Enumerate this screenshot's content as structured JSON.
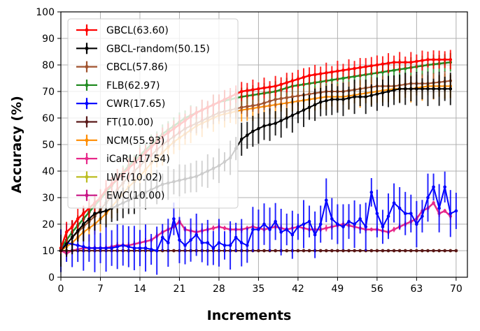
{
  "chart_data": {
    "type": "line",
    "title": "",
    "xlabel": "Increments",
    "ylabel": "Accuracy (%)",
    "xlim": [
      0,
      72
    ],
    "ylim": [
      0,
      100
    ],
    "xticks": [
      0,
      7,
      14,
      21,
      28,
      35,
      42,
      49,
      56,
      63,
      70
    ],
    "yticks": [
      0,
      10,
      20,
      30,
      40,
      50,
      60,
      70,
      80,
      90,
      100
    ],
    "grid": true,
    "legend_position": "top-left",
    "series": [
      {
        "name": "GBCL(63.60)",
        "color": "#ff0000",
        "linewidth": 2.5,
        "points": [
          [
            0,
            11
          ],
          [
            1,
            17
          ],
          [
            2,
            19
          ],
          [
            3,
            22
          ],
          [
            4,
            24
          ],
          [
            5,
            26
          ],
          [
            6,
            28
          ],
          [
            7,
            30
          ],
          [
            8,
            33
          ],
          [
            10,
            37
          ],
          [
            12,
            41
          ],
          [
            14,
            45
          ],
          [
            16,
            49
          ],
          [
            18,
            53
          ],
          [
            20,
            56
          ],
          [
            22,
            59
          ],
          [
            24,
            62
          ],
          [
            26,
            64
          ],
          [
            28,
            66
          ],
          [
            30,
            68
          ],
          [
            32,
            70
          ],
          [
            35,
            71
          ],
          [
            38,
            72
          ],
          [
            41,
            74
          ],
          [
            44,
            76
          ],
          [
            47,
            77
          ],
          [
            50,
            78
          ],
          [
            53,
            79
          ],
          [
            56,
            80
          ],
          [
            59,
            81
          ],
          [
            62,
            81
          ],
          [
            65,
            82
          ],
          [
            69,
            82
          ]
        ],
        "err": 3
      },
      {
        "name": "GBCL-random(50.15)",
        "color": "#000000",
        "linewidth": 2,
        "points": [
          [
            0,
            10
          ],
          [
            2,
            15
          ],
          [
            4,
            20
          ],
          [
            6,
            24
          ],
          [
            8,
            25
          ],
          [
            10,
            27
          ],
          [
            12,
            29
          ],
          [
            14,
            31
          ],
          [
            16,
            33
          ],
          [
            18,
            35
          ],
          [
            20,
            36
          ],
          [
            22,
            37
          ],
          [
            24,
            38
          ],
          [
            26,
            40
          ],
          [
            28,
            42
          ],
          [
            30,
            45
          ],
          [
            32,
            52
          ],
          [
            34,
            55
          ],
          [
            36,
            57
          ],
          [
            38,
            58
          ],
          [
            40,
            60
          ],
          [
            42,
            62
          ],
          [
            44,
            64
          ],
          [
            46,
            66
          ],
          [
            48,
            67
          ],
          [
            50,
            67
          ],
          [
            52,
            68
          ],
          [
            54,
            68
          ],
          [
            56,
            69
          ],
          [
            58,
            70
          ],
          [
            60,
            71
          ],
          [
            62,
            71
          ],
          [
            64,
            71
          ],
          [
            66,
            71
          ],
          [
            69,
            71
          ]
        ],
        "err": 5
      },
      {
        "name": "CBCL(57.86)",
        "color": "#a0522d",
        "linewidth": 2,
        "points": [
          [
            0,
            10
          ],
          [
            2,
            15
          ],
          [
            4,
            19
          ],
          [
            6,
            23
          ],
          [
            8,
            28
          ],
          [
            10,
            33
          ],
          [
            12,
            38
          ],
          [
            14,
            42
          ],
          [
            16,
            46
          ],
          [
            18,
            50
          ],
          [
            20,
            53
          ],
          [
            22,
            56
          ],
          [
            24,
            58
          ],
          [
            26,
            60
          ],
          [
            28,
            62
          ],
          [
            30,
            63
          ],
          [
            32,
            64
          ],
          [
            35,
            65
          ],
          [
            38,
            67
          ],
          [
            41,
            68
          ],
          [
            44,
            69
          ],
          [
            47,
            70
          ],
          [
            50,
            70
          ],
          [
            53,
            71
          ],
          [
            56,
            72
          ],
          [
            59,
            72
          ],
          [
            62,
            73
          ],
          [
            65,
            73
          ],
          [
            69,
            74
          ]
        ],
        "err": 3
      },
      {
        "name": "FLB(62.97)",
        "color": "#228b22",
        "linewidth": 2.5,
        "points": [
          [
            0,
            11
          ],
          [
            2,
            17
          ],
          [
            4,
            22
          ],
          [
            6,
            27
          ],
          [
            8,
            32
          ],
          [
            10,
            37
          ],
          [
            12,
            42
          ],
          [
            14,
            46
          ],
          [
            16,
            50
          ],
          [
            18,
            54
          ],
          [
            20,
            57
          ],
          [
            22,
            60
          ],
          [
            24,
            62
          ],
          [
            26,
            64
          ],
          [
            28,
            66
          ],
          [
            30,
            67
          ],
          [
            32,
            68
          ],
          [
            35,
            69
          ],
          [
            38,
            70
          ],
          [
            41,
            72
          ],
          [
            44,
            73
          ],
          [
            47,
            74
          ],
          [
            50,
            75
          ],
          [
            53,
            76
          ],
          [
            56,
            77
          ],
          [
            59,
            78
          ],
          [
            62,
            79
          ],
          [
            65,
            80
          ],
          [
            69,
            81
          ]
        ],
        "err": 3
      },
      {
        "name": "CWR(17.65)",
        "color": "#0000ff",
        "linewidth": 2,
        "points": [
          [
            0,
            10
          ],
          [
            1,
            13
          ],
          [
            3,
            12
          ],
          [
            5,
            11
          ],
          [
            7,
            11
          ],
          [
            9,
            11
          ],
          [
            11,
            12
          ],
          [
            13,
            11
          ],
          [
            15,
            11
          ],
          [
            17,
            10
          ],
          [
            18,
            15
          ],
          [
            19,
            13
          ],
          [
            20,
            22
          ],
          [
            21,
            14
          ],
          [
            22,
            12
          ],
          [
            23,
            14
          ],
          [
            24,
            16
          ],
          [
            25,
            13
          ],
          [
            26,
            13
          ],
          [
            27,
            11
          ],
          [
            28,
            13
          ],
          [
            29,
            12
          ],
          [
            30,
            12
          ],
          [
            31,
            15
          ],
          [
            32,
            13
          ],
          [
            33,
            12
          ],
          [
            34,
            18
          ],
          [
            35,
            18
          ],
          [
            36,
            20
          ],
          [
            37,
            18
          ],
          [
            38,
            21
          ],
          [
            39,
            17
          ],
          [
            40,
            18
          ],
          [
            41,
            16
          ],
          [
            42,
            19
          ],
          [
            43,
            20
          ],
          [
            44,
            21
          ],
          [
            45,
            16
          ],
          [
            46,
            20
          ],
          [
            47,
            29
          ],
          [
            48,
            22
          ],
          [
            49,
            20
          ],
          [
            50,
            19
          ],
          [
            51,
            21
          ],
          [
            52,
            20
          ],
          [
            53,
            22
          ],
          [
            54,
            19
          ],
          [
            55,
            32
          ],
          [
            56,
            24
          ],
          [
            57,
            19
          ],
          [
            58,
            23
          ],
          [
            59,
            28
          ],
          [
            60,
            26
          ],
          [
            61,
            24
          ],
          [
            62,
            24
          ],
          [
            63,
            20
          ],
          [
            64,
            23
          ],
          [
            65,
            30
          ],
          [
            66,
            34
          ],
          [
            67,
            26
          ],
          [
            68,
            34
          ],
          [
            69,
            24
          ],
          [
            70,
            25
          ]
        ],
        "err": 7
      },
      {
        "name": "FT(10.00)",
        "color": "#5a1a1a",
        "linewidth": 2,
        "points": [
          [
            0,
            10
          ],
          [
            70,
            10
          ]
        ],
        "err": 0
      },
      {
        "name": "NCM(55.93)",
        "color": "#ff8c00",
        "linewidth": 2,
        "points": [
          [
            0,
            10
          ],
          [
            2,
            13
          ],
          [
            4,
            17
          ],
          [
            6,
            20
          ],
          [
            8,
            24
          ],
          [
            10,
            29
          ],
          [
            12,
            34
          ],
          [
            14,
            38
          ],
          [
            16,
            43
          ],
          [
            18,
            47
          ],
          [
            20,
            51
          ],
          [
            22,
            54
          ],
          [
            24,
            57
          ],
          [
            26,
            59
          ],
          [
            28,
            61
          ],
          [
            30,
            62
          ],
          [
            32,
            63
          ],
          [
            35,
            64
          ],
          [
            38,
            65
          ],
          [
            41,
            66
          ],
          [
            44,
            67
          ],
          [
            47,
            68
          ],
          [
            50,
            68
          ],
          [
            53,
            69
          ],
          [
            56,
            70
          ],
          [
            59,
            71
          ],
          [
            62,
            71
          ],
          [
            65,
            72
          ],
          [
            69,
            72
          ]
        ],
        "err": 4
      },
      {
        "name": "iCaRL(17.54)",
        "color": "#e7298a",
        "linewidth": 2.5,
        "points": [
          [
            0,
            10
          ],
          [
            1,
            9
          ],
          [
            2,
            10
          ],
          [
            4,
            11
          ],
          [
            6,
            11
          ],
          [
            8,
            11
          ],
          [
            10,
            12
          ],
          [
            12,
            12
          ],
          [
            14,
            13
          ],
          [
            16,
            14
          ],
          [
            18,
            17
          ],
          [
            19,
            18
          ],
          [
            20,
            19
          ],
          [
            21,
            21
          ],
          [
            22,
            18
          ],
          [
            24,
            17
          ],
          [
            26,
            18
          ],
          [
            28,
            19
          ],
          [
            30,
            18
          ],
          [
            32,
            18
          ],
          [
            34,
            19
          ],
          [
            36,
            18
          ],
          [
            38,
            19
          ],
          [
            40,
            18
          ],
          [
            42,
            19
          ],
          [
            44,
            18
          ],
          [
            46,
            18
          ],
          [
            48,
            19
          ],
          [
            50,
            20
          ],
          [
            52,
            19
          ],
          [
            54,
            18
          ],
          [
            56,
            18
          ],
          [
            58,
            17
          ],
          [
            60,
            19
          ],
          [
            62,
            21
          ],
          [
            63,
            22
          ],
          [
            64,
            25
          ],
          [
            65,
            26
          ],
          [
            66,
            28
          ],
          [
            67,
            24
          ],
          [
            68,
            25
          ],
          [
            69,
            23
          ]
        ],
        "err": 1
      },
      {
        "name": "LWF(10.02)",
        "color": "#bcbd22",
        "linewidth": 2,
        "points": [
          [
            0,
            10
          ],
          [
            70,
            10
          ]
        ],
        "err": 0
      },
      {
        "name": "EWC(10.00)",
        "color": "#c71585",
        "linewidth": 2,
        "points": [
          [
            0,
            10
          ],
          [
            70,
            10
          ]
        ],
        "err": 0
      }
    ]
  }
}
